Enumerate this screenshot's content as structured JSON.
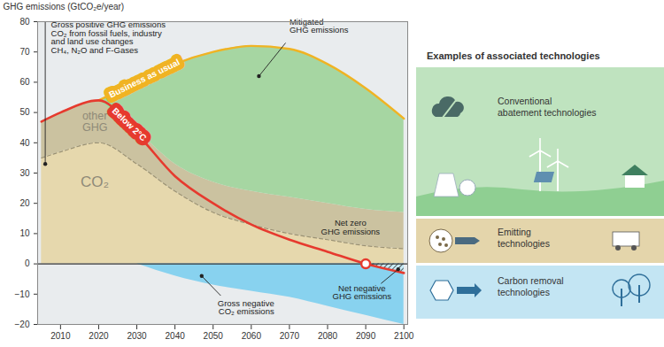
{
  "chart_data": {
    "type": "area",
    "y_label": "GHG emissions (GtCO₂e/year)",
    "x": [
      2005,
      2010,
      2020,
      2030,
      2040,
      2050,
      2060,
      2070,
      2080,
      2090,
      2100
    ],
    "xlim": [
      2004,
      2101
    ],
    "xticks": [
      2010,
      2020,
      2030,
      2040,
      2050,
      2060,
      2070,
      2080,
      2090,
      2100
    ],
    "ylim": [
      -20,
      80
    ],
    "yticks": [
      -20,
      -10,
      0,
      10,
      20,
      30,
      40,
      50,
      60,
      70,
      80
    ],
    "grid": false,
    "stacked": true,
    "series": [
      {
        "name": "CO₂",
        "type": "area",
        "color": "#e6d8ad",
        "line_style": "dashed",
        "values": [
          35,
          37,
          40,
          33,
          24,
          17,
          13,
          10,
          8,
          6,
          5
        ]
      },
      {
        "name": "other GHG",
        "type": "area",
        "color": "#cbc2a0",
        "values": [
          12,
          13,
          14,
          11,
          9,
          10,
          11,
          12,
          12,
          12,
          12
        ]
      },
      {
        "name": "Mitigated\nGHG emissions",
        "type": "area",
        "color": "#a6d6a2",
        "values": [
          null,
          null,
          0,
          16,
          33,
          43,
          48,
          49,
          46,
          40,
          31
        ]
      },
      {
        "name": "Gross negative\nCO₂ emissions",
        "type": "area",
        "color": "#88d2ef",
        "values": [
          null,
          null,
          null,
          0,
          -4,
          -7,
          -9,
          -11,
          -14,
          -17,
          -20
        ]
      },
      {
        "name": "Business as usual",
        "type": "line",
        "color": "#f0b323",
        "values": [
          null,
          null,
          54,
          60,
          66,
          70,
          72,
          71,
          66,
          58,
          48
        ]
      },
      {
        "name": "Below 2°C",
        "type": "line",
        "color": "#e63a2e",
        "values": [
          47,
          50,
          54,
          43,
          29,
          20,
          13,
          8,
          4,
          0,
          -3
        ]
      }
    ],
    "annotations": [
      {
        "text": "Gross positive GHG emissions\nCO₂ from fossil fuels, industry\nand land use changes\nCH₄, N₂O and F-Gases"
      },
      {
        "text": "Net zero\nGHG emissions"
      },
      {
        "text": "Net negative\nGHG emissions"
      }
    ]
  },
  "technologies": {
    "title": "Examples of associated technologies",
    "items": [
      {
        "label": "Conventional\nabatement technologies",
        "color": "#bfe3bf"
      },
      {
        "label": "Emitting\ntechnologies",
        "color": "#e4d5ab"
      },
      {
        "label": "Carbon removal\ntechnologies",
        "color": "#c3e5f3"
      }
    ]
  }
}
